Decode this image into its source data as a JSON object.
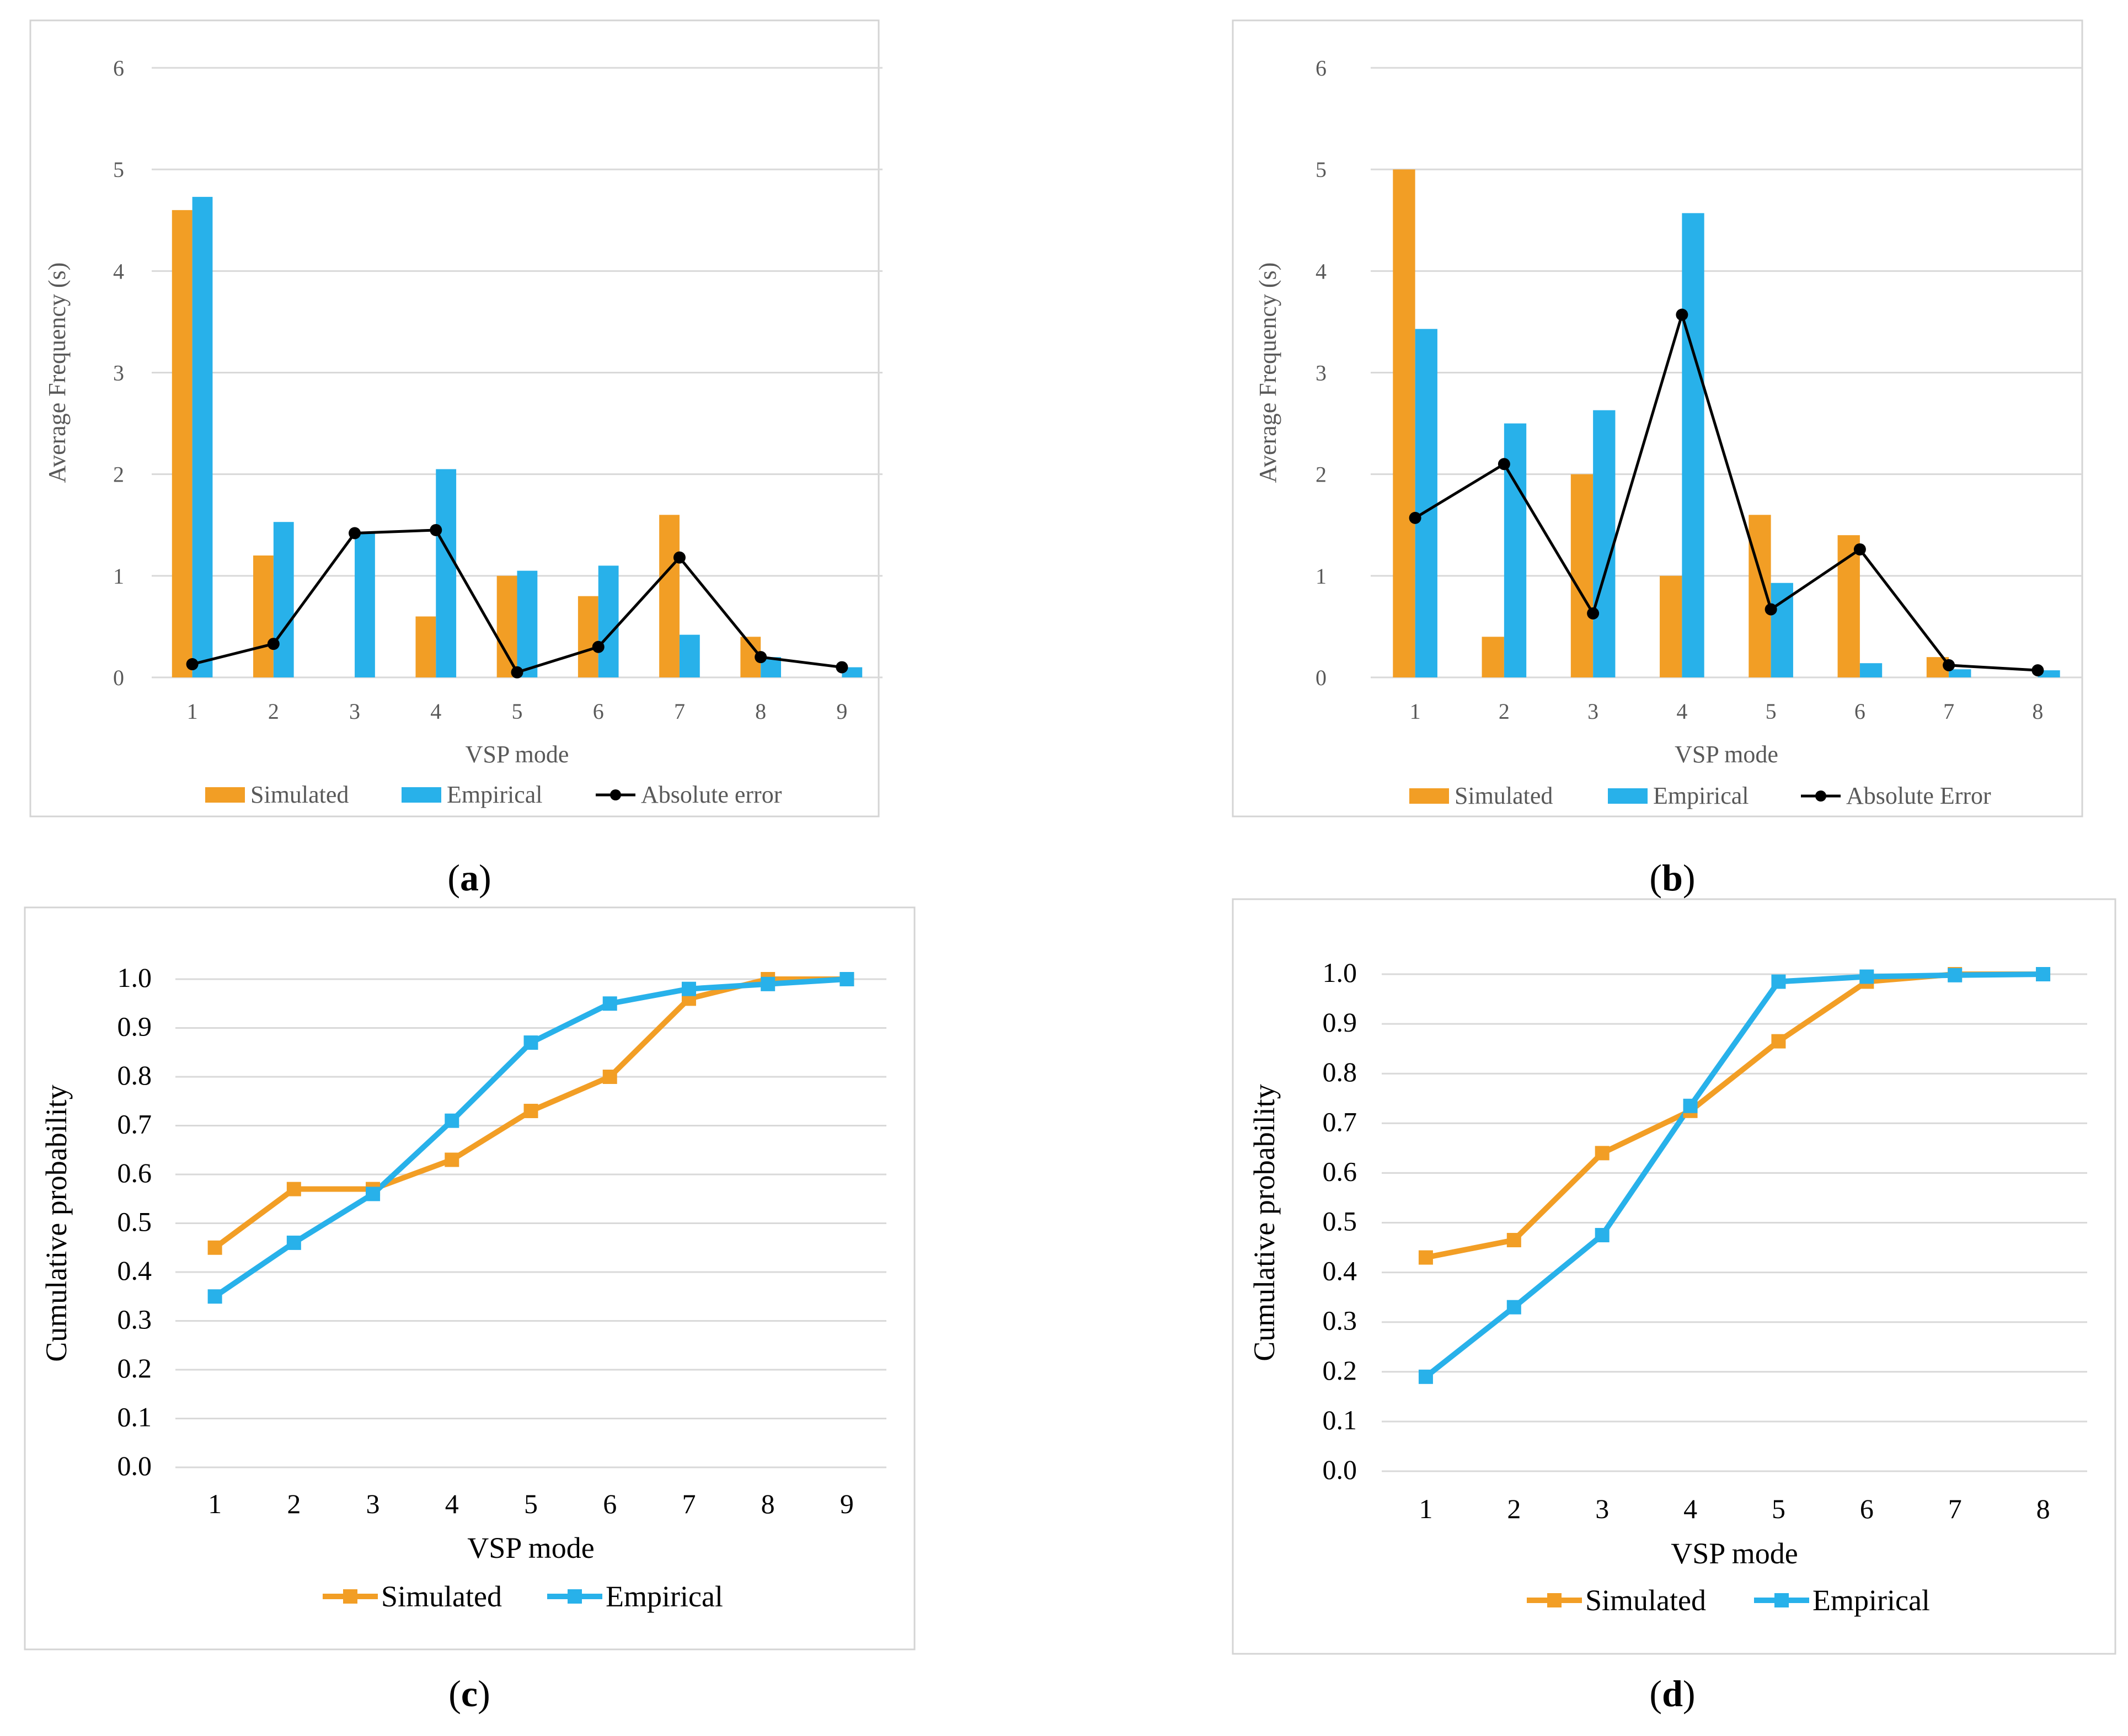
{
  "colors": {
    "simulated": "#F29E25",
    "empirical": "#28B1EA",
    "error": "#000000"
  },
  "chart_data": [
    {
      "id": "a",
      "type": "bar",
      "caption": "a",
      "xlabel": "VSP mode",
      "ylabel": "Average Frequency (s)",
      "ylim": [
        0,
        6
      ],
      "yticks": [
        "0",
        "1",
        "2",
        "3",
        "4",
        "5",
        "6"
      ],
      "categories": [
        "1",
        "2",
        "3",
        "4",
        "5",
        "6",
        "7",
        "8",
        "9"
      ],
      "series": [
        {
          "name": "Simulated",
          "kind": "bar",
          "values": [
            4.6,
            1.2,
            0,
            0.6,
            1.0,
            0.8,
            1.6,
            0.4,
            0
          ]
        },
        {
          "name": "Empirical",
          "kind": "bar",
          "values": [
            4.73,
            1.53,
            1.42,
            2.05,
            1.05,
            1.1,
            0.42,
            0.2,
            0.1
          ]
        },
        {
          "name": "Absolute error",
          "kind": "line",
          "values": [
            0.13,
            0.33,
            1.42,
            1.45,
            0.05,
            0.3,
            1.18,
            0.2,
            0.1
          ]
        }
      ]
    },
    {
      "id": "b",
      "type": "bar",
      "caption": "b",
      "xlabel": "VSP mode",
      "ylabel": "Average Frequency (s)",
      "ylim": [
        0,
        6
      ],
      "yticks": [
        "0",
        "1",
        "2",
        "3",
        "4",
        "5",
        "6"
      ],
      "categories": [
        "1",
        "2",
        "3",
        "4",
        "5",
        "6",
        "7",
        "8"
      ],
      "series": [
        {
          "name": "Simulated",
          "kind": "bar",
          "values": [
            5.0,
            0.4,
            2.0,
            1.0,
            1.6,
            1.4,
            0.2,
            0
          ]
        },
        {
          "name": "Empirical",
          "kind": "bar",
          "values": [
            3.43,
            2.5,
            2.63,
            4.57,
            0.93,
            0.14,
            0.08,
            0.07
          ]
        },
        {
          "name": "Absolute Error",
          "kind": "line",
          "values": [
            1.57,
            2.1,
            0.63,
            3.57,
            0.67,
            1.26,
            0.12,
            0.07
          ]
        }
      ]
    },
    {
      "id": "c",
      "type": "line",
      "caption": "c",
      "xlabel": "VSP mode",
      "ylabel": "Cumulative probability",
      "ylim": [
        0,
        1
      ],
      "yticks": [
        "0.0",
        "0.1",
        "0.2",
        "0.3",
        "0.4",
        "0.5",
        "0.6",
        "0.7",
        "0.8",
        "0.9",
        "1.0"
      ],
      "categories": [
        "1",
        "2",
        "3",
        "4",
        "5",
        "6",
        "7",
        "8",
        "9"
      ],
      "series": [
        {
          "name": "Simulated",
          "values": [
            0.45,
            0.57,
            0.57,
            0.63,
            0.73,
            0.8,
            0.96,
            1.0,
            1.0
          ]
        },
        {
          "name": "Empirical",
          "values": [
            0.35,
            0.46,
            0.56,
            0.71,
            0.87,
            0.95,
            0.98,
            0.99,
            1.0
          ]
        }
      ]
    },
    {
      "id": "d",
      "type": "line",
      "caption": "d",
      "xlabel": "VSP mode",
      "ylabel": "Cumulative probability",
      "ylim": [
        0,
        1
      ],
      "yticks": [
        "0.0",
        "0.1",
        "0.2",
        "0.3",
        "0.4",
        "0.5",
        "0.6",
        "0.7",
        "0.8",
        "0.9",
        "1.0"
      ],
      "categories": [
        "1",
        "2",
        "3",
        "4",
        "5",
        "6",
        "7",
        "8"
      ],
      "series": [
        {
          "name": "Simulated",
          "values": [
            0.43,
            0.465,
            0.64,
            0.725,
            0.865,
            0.985,
            1.0,
            1.0
          ]
        },
        {
          "name": "Empirical",
          "values": [
            0.19,
            0.33,
            0.475,
            0.735,
            0.985,
            0.995,
            0.998,
            1.0
          ]
        }
      ]
    }
  ]
}
